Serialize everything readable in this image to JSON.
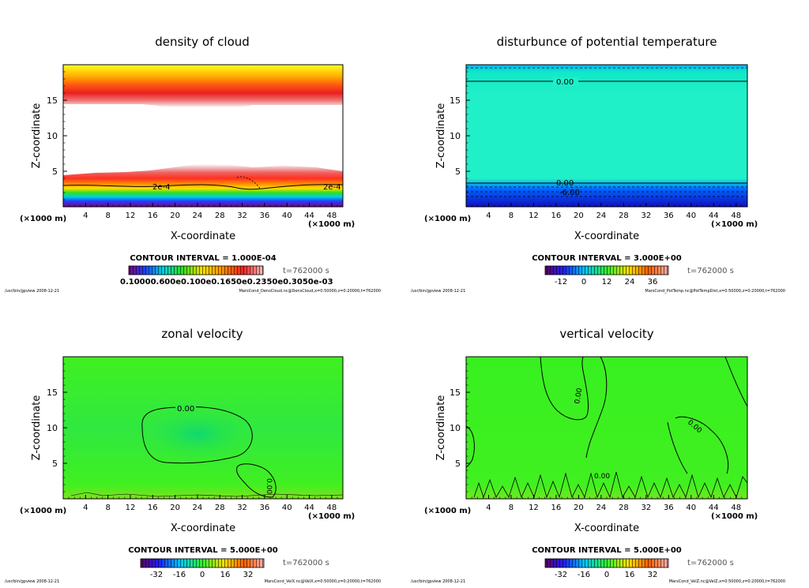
{
  "panels": [
    {
      "id": "density",
      "title": "density of cloud",
      "xlabel": "X-coordinate",
      "ylabel": "Z-coordinate",
      "x_unit": "(×1000 m)",
      "y_unit": "",
      "xticks": [
        "4",
        "8",
        "12",
        "16",
        "20",
        "24",
        "28",
        "32",
        "36",
        "40",
        "44",
        "48"
      ],
      "yticks": [
        "5",
        "10",
        "15"
      ],
      "contour_labels": [
        "2e-4",
        "2e-4"
      ],
      "contour_interval_text": "CONTOUR INTERVAL = 1.000E-04",
      "time_text": "t=762000  s",
      "colorbar_labels": [
        "0.10000.600e0.100e0.1650e0.2350e0.3050e-03"
      ],
      "footer_left": "/usr/bin/gpview   2008-12-21",
      "footer_right": "MarsCond_DensCloud.nc@DensCloud,x=0:50000,z=0:20000,t=762000"
    },
    {
      "id": "pottemp",
      "title": "disturbunce of potential temperature",
      "xlabel": "X-coordinate",
      "ylabel": "Z-coordinate",
      "x_unit": "(×1000 m)",
      "y_unit": "(×1000 m)",
      "xticks": [
        "4",
        "8",
        "12",
        "16",
        "20",
        "24",
        "28",
        "32",
        "36",
        "40",
        "44",
        "48"
      ],
      "yticks": [
        "5",
        "10",
        "15"
      ],
      "contour_labels": [
        "0.00",
        "0.00",
        "-6.00"
      ],
      "contour_interval_text": "CONTOUR INTERVAL = 3.000E+00",
      "time_text": "t=762000  s",
      "colorbar_labels": [
        "-12",
        "0",
        "12",
        "24",
        "36"
      ],
      "footer_left": "/usr/bin/gpview   2008-12-21",
      "footer_right": "MarsCond_PotTemp.nc@PotTempDist,x=0:50000,z=0:20000,t=762000"
    },
    {
      "id": "zonal",
      "title": "zonal velocity",
      "xlabel": "X-coordinate",
      "ylabel": "Z-coordinate",
      "x_unit": "(×1000 m)",
      "y_unit": "(×1000 m)",
      "xticks": [
        "4",
        "8",
        "12",
        "16",
        "20",
        "24",
        "28",
        "32",
        "36",
        "40",
        "44",
        "48"
      ],
      "yticks": [
        "5",
        "10",
        "15"
      ],
      "contour_labels": [
        "0.00",
        "0.00"
      ],
      "contour_interval_text": "CONTOUR INTERVAL = 5.000E+00",
      "time_text": "t=762000  s",
      "colorbar_labels": [
        "-32",
        "-16",
        "0",
        "16",
        "32"
      ],
      "footer_left": "/usr/bin/gpview   2008-12-21",
      "footer_right": "MarsCond_VelX.nc@VelX,x=0:50000,z=0:20000,t=762000"
    },
    {
      "id": "vertical",
      "title": "vertical velocity",
      "xlabel": "X-coordinate",
      "ylabel": "Z-coordinate",
      "x_unit": "(×1000 m)",
      "y_unit": "(×1000 m)",
      "xticks": [
        "4",
        "8",
        "12",
        "16",
        "20",
        "24",
        "28",
        "32",
        "36",
        "40",
        "44",
        "48"
      ],
      "yticks": [
        "5",
        "10",
        "15"
      ],
      "contour_labels": [
        "0.00",
        "0.00",
        "0.00"
      ],
      "contour_interval_text": "CONTOUR INTERVAL = 5.000E+00",
      "time_text": "t=762000  s",
      "colorbar_labels": [
        "-32",
        "-16",
        "0",
        "16",
        "32"
      ],
      "footer_left": "/usr/bin/gpview   2008-12-21",
      "footer_right": "MarsCond_VelZ.nc@VelZ,x=0:50000,z=0:20000,t=762000"
    }
  ],
  "chart_data": [
    {
      "type": "heatmap",
      "title": "density of cloud",
      "xlabel": "X-coordinate",
      "ylabel": "Z-coordinate",
      "x_unit": "×1000 m",
      "xlim": [
        0,
        50
      ],
      "ylim": [
        0,
        20
      ],
      "xticks": [
        4,
        8,
        12,
        16,
        20,
        24,
        28,
        32,
        36,
        40,
        44,
        48
      ],
      "yticks": [
        5,
        10,
        15
      ],
      "contour_interval": 0.0001,
      "contour_labels": [
        "2e-4",
        "2e-4"
      ],
      "time_s": 762000,
      "regions": [
        {
          "zmin": 13.0,
          "zmax": 20.0,
          "description_value": "upper cloud layer, highest density near z=16",
          "peak_z": 16
        },
        {
          "zmin": 0.5,
          "zmax": 5.5,
          "description_value": "lower cloud layer, highest density near z=3",
          "peak_z": 3
        }
      ],
      "colormap": [
        "#ffffff",
        "#f2c0c0",
        "#ff2020",
        "#ff8c00",
        "#ffff00",
        "#00e000",
        "#00d0ff",
        "#0000ff",
        "#800080"
      ]
    },
    {
      "type": "heatmap",
      "title": "disturbunce of potential temperature",
      "xlabel": "X-coordinate",
      "ylabel": "Z-coordinate",
      "x_unit": "×1000 m",
      "xlim": [
        0,
        50
      ],
      "ylim": [
        0,
        20
      ],
      "xticks": [
        4,
        8,
        12,
        16,
        20,
        24,
        28,
        32,
        36,
        40,
        44,
        48
      ],
      "yticks": [
        5,
        10,
        15
      ],
      "contour_interval": 3.0,
      "time_s": 762000,
      "contours": [
        {
          "level": 0.0,
          "z": 17.7,
          "label": "0.00"
        },
        {
          "level": 0.0,
          "z": 3.3,
          "label": "0.00"
        },
        {
          "level": -6.0,
          "z": 2.0,
          "label": "-6.00"
        }
      ],
      "colorbar_ticks": [
        -12,
        0,
        12,
        24,
        36
      ]
    },
    {
      "type": "heatmap",
      "title": "zonal velocity",
      "xlabel": "X-coordinate",
      "ylabel": "Z-coordinate",
      "x_unit": "×1000 m",
      "xlim": [
        0,
        50
      ],
      "ylim": [
        0,
        20
      ],
      "xticks": [
        4,
        8,
        12,
        16,
        20,
        24,
        28,
        32,
        36,
        40,
        44,
        48
      ],
      "yticks": [
        5,
        10,
        15
      ],
      "contour_interval": 5.0,
      "time_s": 762000,
      "contour_labels": [
        "0.00",
        "0.00"
      ],
      "colorbar_ticks": [
        -32,
        -16,
        0,
        16,
        32
      ]
    },
    {
      "type": "heatmap",
      "title": "vertical velocity",
      "xlabel": "X-coordinate",
      "ylabel": "Z-coordinate",
      "x_unit": "×1000 m",
      "xlim": [
        0,
        50
      ],
      "ylim": [
        0,
        20
      ],
      "xticks": [
        4,
        8,
        12,
        16,
        20,
        24,
        28,
        32,
        36,
        40,
        44,
        48
      ],
      "yticks": [
        5,
        10,
        15
      ],
      "contour_interval": 5.0,
      "time_s": 762000,
      "contour_labels": [
        "0.00",
        "0.00",
        "0.00"
      ],
      "colorbar_ticks": [
        -32,
        -16,
        0,
        16,
        32
      ]
    }
  ]
}
